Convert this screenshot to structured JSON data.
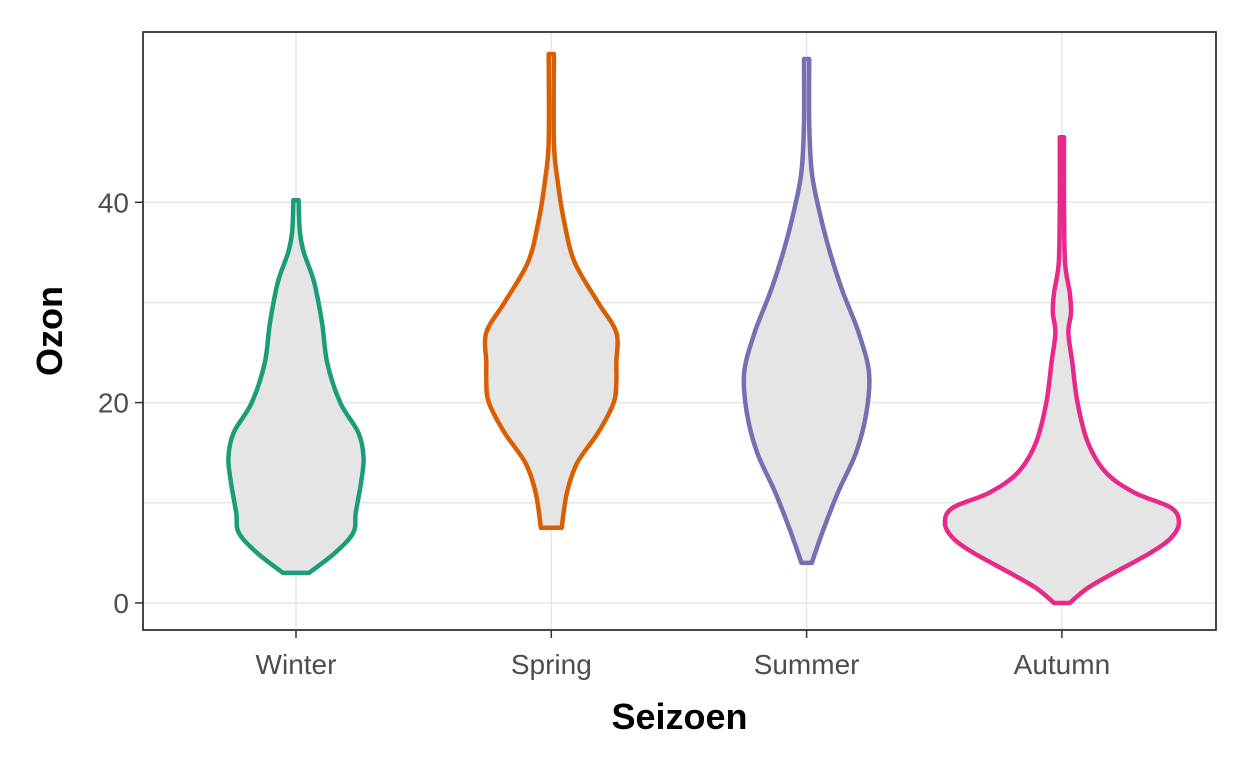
{
  "chart_data": {
    "type": "violin",
    "title": "",
    "xlabel": "Seizoen",
    "ylabel": "Ozon",
    "ylim": [
      -2.7,
      57
    ],
    "yticks": [
      0,
      20,
      40
    ],
    "grid": true,
    "legend": "none",
    "fill_color": "#e5e5e5",
    "categories": [
      "Winter",
      "Spring",
      "Summer",
      "Autumn"
    ],
    "series": [
      {
        "category": "Winter",
        "color": "#1b9e77",
        "min": 3,
        "max": 40.2,
        "density_profile": [
          {
            "y": 3,
            "half_width": 0.05
          },
          {
            "y": 5,
            "half_width": 0.15
          },
          {
            "y": 7,
            "half_width": 0.22
          },
          {
            "y": 9,
            "half_width": 0.23
          },
          {
            "y": 12,
            "half_width": 0.25
          },
          {
            "y": 14.5,
            "half_width": 0.26
          },
          {
            "y": 17,
            "half_width": 0.24
          },
          {
            "y": 20,
            "half_width": 0.17
          },
          {
            "y": 24,
            "half_width": 0.12
          },
          {
            "y": 28,
            "half_width": 0.1
          },
          {
            "y": 32,
            "half_width": 0.07
          },
          {
            "y": 35,
            "half_width": 0.03
          },
          {
            "y": 37,
            "half_width": 0.015
          },
          {
            "y": 40.2,
            "half_width": 0.01
          }
        ]
      },
      {
        "category": "Spring",
        "color": "#d95f02",
        "min": 7.5,
        "max": 54.8,
        "density_profile": [
          {
            "y": 7.5,
            "half_width": 0.04
          },
          {
            "y": 11,
            "half_width": 0.06
          },
          {
            "y": 14,
            "half_width": 0.1
          },
          {
            "y": 17,
            "half_width": 0.18
          },
          {
            "y": 20,
            "half_width": 0.24
          },
          {
            "y": 22,
            "half_width": 0.25
          },
          {
            "y": 24,
            "half_width": 0.25
          },
          {
            "y": 27,
            "half_width": 0.25
          },
          {
            "y": 30,
            "half_width": 0.18
          },
          {
            "y": 34,
            "half_width": 0.09
          },
          {
            "y": 38,
            "half_width": 0.05
          },
          {
            "y": 42,
            "half_width": 0.025
          },
          {
            "y": 46,
            "half_width": 0.01
          },
          {
            "y": 54.8,
            "half_width": 0.01
          }
        ]
      },
      {
        "category": "Summer",
        "color": "#7570b3",
        "min": 4,
        "max": 54.3,
        "density_profile": [
          {
            "y": 4,
            "half_width": 0.02
          },
          {
            "y": 7,
            "half_width": 0.06
          },
          {
            "y": 11,
            "half_width": 0.12
          },
          {
            "y": 15,
            "half_width": 0.19
          },
          {
            "y": 19,
            "half_width": 0.23
          },
          {
            "y": 23,
            "half_width": 0.24
          },
          {
            "y": 27,
            "half_width": 0.2
          },
          {
            "y": 31,
            "half_width": 0.14
          },
          {
            "y": 35,
            "half_width": 0.09
          },
          {
            "y": 39,
            "half_width": 0.05
          },
          {
            "y": 43,
            "half_width": 0.02
          },
          {
            "y": 48,
            "half_width": 0.01
          },
          {
            "y": 54.3,
            "half_width": 0.01
          }
        ]
      },
      {
        "category": "Autumn",
        "color": "#e7298a",
        "min": 0,
        "max": 46.5,
        "density_profile": [
          {
            "y": 0,
            "half_width": 0.03
          },
          {
            "y": 1.5,
            "half_width": 0.1
          },
          {
            "y": 3,
            "half_width": 0.2
          },
          {
            "y": 5,
            "half_width": 0.34
          },
          {
            "y": 6.5,
            "half_width": 0.42
          },
          {
            "y": 8,
            "half_width": 0.45
          },
          {
            "y": 9.5,
            "half_width": 0.42
          },
          {
            "y": 11,
            "half_width": 0.28
          },
          {
            "y": 13,
            "half_width": 0.17
          },
          {
            "y": 16,
            "half_width": 0.1
          },
          {
            "y": 20,
            "half_width": 0.06
          },
          {
            "y": 24,
            "half_width": 0.04
          },
          {
            "y": 27,
            "half_width": 0.025
          },
          {
            "y": 29,
            "half_width": 0.035
          },
          {
            "y": 31,
            "half_width": 0.03
          },
          {
            "y": 34,
            "half_width": 0.012
          },
          {
            "y": 40,
            "half_width": 0.008
          },
          {
            "y": 46.5,
            "half_width": 0.008
          }
        ]
      }
    ]
  }
}
